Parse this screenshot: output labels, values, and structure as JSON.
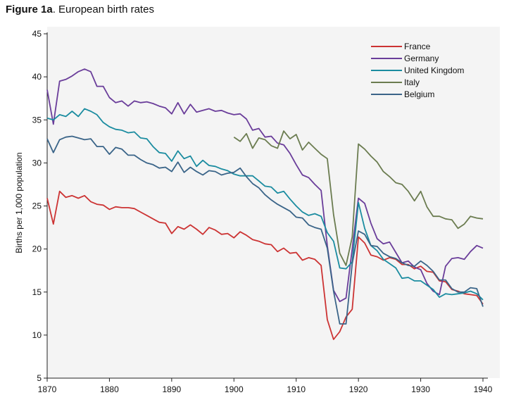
{
  "figure": {
    "label": "Figure 1a",
    "caption": ". European birth rates"
  },
  "chart_data": {
    "type": "line",
    "title": "European birth rates",
    "xlabel": "",
    "ylabel": "Births per 1,000 population",
    "xlim": [
      1870,
      1940
    ],
    "ylim": [
      5,
      45
    ],
    "xticks": [
      1870,
      1880,
      1890,
      1900,
      1910,
      1920,
      1930,
      1940
    ],
    "yticks": [
      5,
      10,
      15,
      20,
      25,
      30,
      35,
      40,
      45
    ],
    "grid": false,
    "legend_position": "top-right",
    "series": [
      {
        "name": "France",
        "color": "#cc3333",
        "x": [
          1870,
          1871,
          1872,
          1873,
          1874,
          1875,
          1876,
          1877,
          1878,
          1879,
          1880,
          1881,
          1882,
          1883,
          1884,
          1885,
          1886,
          1887,
          1888,
          1889,
          1890,
          1891,
          1892,
          1893,
          1894,
          1895,
          1896,
          1897,
          1898,
          1899,
          1900,
          1901,
          1902,
          1903,
          1904,
          1905,
          1906,
          1907,
          1908,
          1909,
          1910,
          1911,
          1912,
          1913,
          1914,
          1915,
          1916,
          1917,
          1918,
          1919,
          1920,
          1921,
          1922,
          1923,
          1924,
          1925,
          1926,
          1927,
          1928,
          1929,
          1930,
          1931,
          1932,
          1933,
          1934,
          1935,
          1936,
          1937,
          1938,
          1939,
          1940
        ],
        "y": [
          25.9,
          22.9,
          26.7,
          26.0,
          26.2,
          25.9,
          26.2,
          25.5,
          25.2,
          25.1,
          24.6,
          24.9,
          24.8,
          24.8,
          24.7,
          24.3,
          23.9,
          23.5,
          23.1,
          23.0,
          21.8,
          22.6,
          22.3,
          22.8,
          22.3,
          21.7,
          22.5,
          22.2,
          21.7,
          21.8,
          21.3,
          22.0,
          21.6,
          21.1,
          20.9,
          20.6,
          20.5,
          19.7,
          20.1,
          19.5,
          19.6,
          18.7,
          19.0,
          18.8,
          18.1,
          11.8,
          9.5,
          10.4,
          12.1,
          13.0,
          21.4,
          20.7,
          19.3,
          19.1,
          18.7,
          19.0,
          18.8,
          18.2,
          18.2,
          17.7,
          18.0,
          17.4,
          17.3,
          16.3,
          16.2,
          15.3,
          15.1,
          14.8,
          14.7,
          14.6,
          13.6
        ]
      },
      {
        "name": "Germany",
        "color": "#6a3d9a",
        "x": [
          1870,
          1871,
          1872,
          1873,
          1874,
          1875,
          1876,
          1877,
          1878,
          1879,
          1880,
          1881,
          1882,
          1883,
          1884,
          1885,
          1886,
          1887,
          1888,
          1889,
          1890,
          1891,
          1892,
          1893,
          1894,
          1895,
          1896,
          1897,
          1898,
          1899,
          1900,
          1901,
          1902,
          1903,
          1904,
          1905,
          1906,
          1907,
          1908,
          1909,
          1910,
          1911,
          1912,
          1913,
          1914,
          1915,
          1916,
          1917,
          1918,
          1919,
          1920,
          1921,
          1922,
          1923,
          1924,
          1925,
          1926,
          1927,
          1928,
          1929,
          1930,
          1931,
          1932,
          1933,
          1934,
          1935,
          1936,
          1937,
          1938,
          1939,
          1940
        ],
        "y": [
          38.5,
          34.5,
          39.5,
          39.7,
          40.1,
          40.6,
          40.9,
          40.6,
          38.9,
          38.9,
          37.6,
          37.0,
          37.2,
          36.6,
          37.2,
          37.0,
          37.1,
          36.9,
          36.6,
          36.4,
          35.7,
          37.0,
          35.7,
          36.8,
          35.9,
          36.1,
          36.3,
          36.0,
          36.1,
          35.8,
          35.6,
          35.7,
          35.1,
          33.8,
          34.0,
          33.0,
          33.1,
          32.3,
          32.1,
          31.1,
          29.8,
          28.6,
          28.3,
          27.5,
          26.8,
          20.4,
          15.2,
          13.9,
          14.3,
          20.0,
          25.9,
          25.3,
          23.0,
          21.2,
          20.6,
          20.8,
          19.6,
          18.4,
          18.6,
          17.9,
          17.6,
          16.0,
          15.1,
          14.7,
          18.0,
          18.9,
          19.0,
          18.8,
          19.7,
          20.4,
          20.1
        ]
      },
      {
        "name": "United Kingdom",
        "color": "#1b8ca0",
        "x": [
          1870,
          1871,
          1872,
          1873,
          1874,
          1875,
          1876,
          1877,
          1878,
          1879,
          1880,
          1881,
          1882,
          1883,
          1884,
          1885,
          1886,
          1887,
          1888,
          1889,
          1890,
          1891,
          1892,
          1893,
          1894,
          1895,
          1896,
          1897,
          1898,
          1899,
          1900,
          1901,
          1902,
          1903,
          1904,
          1905,
          1906,
          1907,
          1908,
          1909,
          1910,
          1911,
          1912,
          1913,
          1914,
          1915,
          1916,
          1917,
          1918,
          1919,
          1920,
          1921,
          1922,
          1923,
          1924,
          1925,
          1926,
          1927,
          1928,
          1929,
          1930,
          1931,
          1932,
          1933,
          1934,
          1935,
          1936,
          1937,
          1938,
          1939,
          1940
        ],
        "y": [
          35.2,
          35.0,
          35.6,
          35.4,
          36.0,
          35.4,
          36.3,
          36.0,
          35.6,
          34.7,
          34.2,
          33.9,
          33.8,
          33.5,
          33.6,
          32.9,
          32.8,
          31.9,
          31.2,
          31.1,
          30.2,
          31.4,
          30.5,
          30.8,
          29.6,
          30.3,
          29.7,
          29.6,
          29.3,
          29.1,
          28.7,
          28.5,
          28.5,
          28.5,
          27.9,
          27.3,
          27.2,
          26.5,
          26.7,
          25.8,
          25.0,
          24.3,
          23.9,
          24.1,
          23.8,
          21.9,
          20.9,
          17.8,
          17.7,
          18.5,
          25.4,
          22.4,
          20.4,
          19.8,
          18.8,
          18.3,
          17.8,
          16.6,
          16.7,
          16.3,
          16.3,
          15.8,
          15.3,
          14.4,
          14.8,
          14.7,
          14.8,
          14.9,
          15.1,
          14.8,
          14.1
        ]
      },
      {
        "name": "Italy",
        "color": "#6b7c50",
        "x": [
          1900,
          1901,
          1902,
          1903,
          1904,
          1905,
          1906,
          1907,
          1908,
          1909,
          1910,
          1911,
          1912,
          1913,
          1914,
          1915,
          1916,
          1917,
          1918,
          1919,
          1920,
          1921,
          1922,
          1923,
          1924,
          1925,
          1926,
          1927,
          1928,
          1929,
          1930,
          1931,
          1932,
          1933,
          1934,
          1935,
          1936,
          1937,
          1938,
          1939,
          1940
        ],
        "y": [
          33.0,
          32.5,
          33.4,
          31.7,
          32.9,
          32.7,
          32.0,
          31.7,
          33.7,
          32.8,
          33.3,
          31.5,
          32.4,
          31.7,
          31.0,
          30.5,
          24.0,
          19.5,
          18.1,
          21.4,
          32.2,
          31.6,
          30.8,
          30.1,
          29.0,
          28.4,
          27.7,
          27.5,
          26.7,
          25.6,
          26.7,
          24.9,
          23.8,
          23.8,
          23.5,
          23.4,
          22.4,
          22.9,
          23.8,
          23.6,
          23.5
        ]
      },
      {
        "name": "Belgium",
        "color": "#3a6488",
        "x": [
          1870,
          1871,
          1872,
          1873,
          1874,
          1875,
          1876,
          1877,
          1878,
          1879,
          1880,
          1881,
          1882,
          1883,
          1884,
          1885,
          1886,
          1887,
          1888,
          1889,
          1890,
          1891,
          1892,
          1893,
          1894,
          1895,
          1896,
          1897,
          1898,
          1899,
          1900,
          1901,
          1902,
          1903,
          1904,
          1905,
          1906,
          1907,
          1908,
          1909,
          1910,
          1911,
          1912,
          1913,
          1914,
          1915,
          1916,
          1917,
          1918,
          1919,
          1920,
          1921,
          1922,
          1923,
          1924,
          1925,
          1926,
          1927,
          1928,
          1929,
          1930,
          1931,
          1932,
          1933,
          1934,
          1935,
          1936,
          1937,
          1938,
          1939,
          1940
        ],
        "y": [
          32.8,
          31.2,
          32.7,
          33.0,
          33.1,
          32.9,
          32.7,
          32.8,
          31.9,
          31.9,
          31.0,
          31.8,
          31.6,
          30.9,
          30.9,
          30.4,
          30.0,
          29.8,
          29.4,
          29.5,
          29.0,
          30.1,
          28.9,
          29.5,
          29.0,
          28.6,
          29.1,
          29.0,
          28.6,
          28.8,
          28.9,
          29.4,
          28.4,
          27.6,
          27.1,
          26.3,
          25.7,
          25.2,
          24.8,
          24.4,
          23.7,
          23.6,
          22.8,
          22.5,
          22.3,
          20.1,
          15.1,
          11.3,
          11.3,
          18.3,
          22.1,
          21.7,
          20.4,
          20.3,
          19.5,
          19.1,
          18.9,
          18.4,
          18.1,
          18.0,
          18.6,
          18.1,
          17.4,
          16.4,
          16.4,
          15.4,
          15.0,
          15.0,
          15.5,
          15.4,
          13.3
        ]
      }
    ]
  }
}
